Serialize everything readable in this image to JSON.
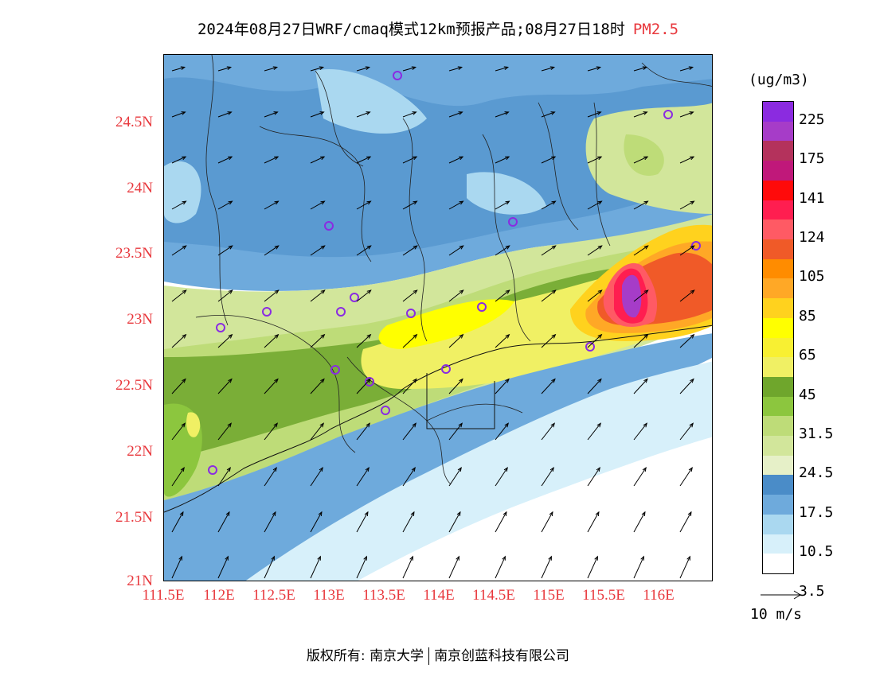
{
  "title": {
    "main": "2024年08月27日WRF/cmaq模式12km预报产品;08月27日18时",
    "variable": "PM2.5"
  },
  "map": {
    "lat_ticks": [
      "24.5N",
      "24N",
      "23.5N",
      "23N",
      "22.5N",
      "22N",
      "21.5N",
      "21N"
    ],
    "lon_ticks": [
      "111.5E",
      "112E",
      "112.5E",
      "113E",
      "113.5E",
      "114E",
      "114.5E",
      "115E",
      "115.5E",
      "116E"
    ],
    "station_marker_color": "#8a2be2"
  },
  "colorbar": {
    "unit": "(ug/m3)",
    "labels": [
      "225",
      "175",
      "141",
      "124",
      "105",
      "85",
      "65",
      "45",
      "31.5",
      "24.5",
      "17.5",
      "10.5",
      "3.5"
    ],
    "colors": [
      "#8b2be0",
      "#a63cc8",
      "#b4325c",
      "#c0187a",
      "#ff0a0a",
      "#ff1e50",
      "#ff5a64",
      "#f05a28",
      "#ff8c00",
      "#ffa826",
      "#ffd21e",
      "#ffff00",
      "#f8f032",
      "#f0f064",
      "#6fa62c",
      "#8cc63e",
      "#bedc78",
      "#d2e69b",
      "#e6f0c8",
      "#4a8cc8",
      "#6eaadc",
      "#aad8f0",
      "#d7f0fa",
      "#ffffff"
    ]
  },
  "wind_reference": {
    "label": "10 m/s"
  },
  "copyright": {
    "owner_label": "版权所有:",
    "org1": "南京大学",
    "org2": "南京创蓝科技有限公司"
  }
}
